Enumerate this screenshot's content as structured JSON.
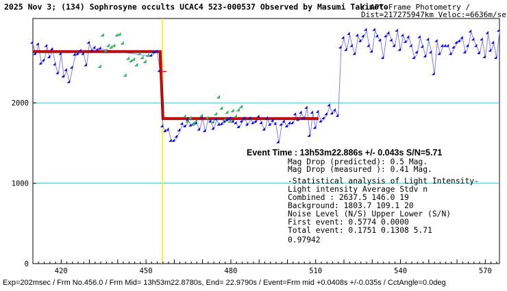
{
  "header": {
    "title_bold": "2025 Nov 3; (134) Sophrosyne occults UCAC4 523-000537 Observed by Masumi Takimoto",
    "title_rest": " / APT-Frame Photometry /",
    "subtitle": "Dist=217275947km Veloc:=6636m/sec"
  },
  "footer": {
    "text": "Exp=202msec / Frm No.456.0 / Frm Mid= 13h53m22.8780s, End= 22.9790s / Event=Frm mid +0.0408s +/-0.035s / CctAngle=0.0deg"
  },
  "results": {
    "event_time": "Event Time : 13h53m22.886s  +/- 0.043s  S/N=5.71",
    "mag_drop_predicted": "Mag Drop (predicted):  0.5   Mag.",
    "mag_drop_measured": "Mag Drop (measured ):  0.41  Mag.",
    "stat_header": "-Statistical analysis of Light Intensity-",
    "table_header": "Light intensity    Average   Stdv      n",
    "row_combined": "  Combined   :     2637.5    146.0    19",
    "row_background": "  Background:      1803.7    109.1    20",
    "noise_header": "Noise Level (N/S)   Upper     Lower    (S/N)",
    "row_first": "  First event:      0.5774   0.0000",
    "row_total": "  Total event:      0.1751   0.1308    5.71",
    "extra_value": "0.97942"
  },
  "chart_data": {
    "type": "line",
    "title": "2025 Nov 3; (134) Sophrosyne occults UCAC4 523-000537 Observed by Masumi Takimoto",
    "xlabel": "",
    "ylabel": "",
    "xlim": [
      410,
      575
    ],
    "ylim": [
      0,
      3050
    ],
    "x_ticks": [
      420,
      450,
      480,
      510,
      540,
      570
    ],
    "y_ticks": [
      0,
      1000,
      2000
    ],
    "grid": "horizontal lines at 1000 and 2000",
    "colors": {
      "primary": "#0000ee",
      "secondary": "#22aa55",
      "model": "#ff0000",
      "model_outline": "#800000",
      "grid": "#00dddd",
      "event_marker": "#ffee00"
    },
    "event_frame": 455.8,
    "model_curve": {
      "upper_level": 2637.5,
      "lower_level": 1803.7,
      "upper_range": [
        410,
        455
      ],
      "lower_range": [
        456,
        511
      ]
    },
    "series": [
      {
        "color": "#0000ee",
        "marker": "diamond",
        "points": [
          [
            410,
            2740
          ],
          [
            411,
            2600
          ],
          [
            412,
            2720
          ],
          [
            413,
            2480
          ],
          [
            414,
            2520
          ],
          [
            415,
            2700
          ],
          [
            416,
            2560
          ],
          [
            417,
            2660
          ],
          [
            418,
            2470
          ],
          [
            419,
            2360
          ],
          [
            420,
            2600
          ],
          [
            421,
            2320
          ],
          [
            422,
            2400
          ],
          [
            423,
            2250
          ],
          [
            424,
            2430
          ],
          [
            425,
            2590
          ],
          [
            426,
            2600
          ],
          [
            427,
            2640
          ],
          [
            428,
            2600
          ],
          [
            429,
            2460
          ],
          [
            430,
            2740
          ],
          [
            431,
            2640
          ],
          [
            432,
            2680
          ],
          [
            433,
            2650
          ],
          [
            434,
            2670
          ],
          [
            452,
            2580
          ],
          [
            453,
            2620
          ],
          [
            454,
            2630
          ],
          [
            455,
            2390
          ],
          [
            456,
            1700
          ],
          [
            457,
            1640
          ],
          [
            458,
            1660
          ],
          [
            459,
            1520
          ],
          [
            460,
            1520
          ],
          [
            461,
            1570
          ],
          [
            462,
            1650
          ],
          [
            463,
            1730
          ],
          [
            464,
            1700
          ],
          [
            465,
            1780
          ],
          [
            466,
            1710
          ],
          [
            467,
            1730
          ],
          [
            468,
            1740
          ],
          [
            469,
            1660
          ],
          [
            470,
            1810
          ],
          [
            471,
            1640
          ],
          [
            472,
            1800
          ],
          [
            473,
            1760
          ],
          [
            474,
            1670
          ],
          [
            475,
            1790
          ],
          [
            476,
            1720
          ],
          [
            477,
            1730
          ],
          [
            478,
            1760
          ],
          [
            479,
            1780
          ],
          [
            480,
            1800
          ],
          [
            481,
            1760
          ],
          [
            482,
            1740
          ],
          [
            483,
            1690
          ],
          [
            484,
            1760
          ],
          [
            485,
            1800
          ],
          [
            486,
            1720
          ],
          [
            487,
            1800
          ],
          [
            488,
            1740
          ],
          [
            489,
            1760
          ],
          [
            490,
            1820
          ],
          [
            491,
            1740
          ],
          [
            492,
            1660
          ],
          [
            493,
            1800
          ],
          [
            494,
            1720
          ],
          [
            495,
            1770
          ],
          [
            496,
            1730
          ],
          [
            497,
            1500
          ],
          [
            498,
            1720
          ],
          [
            499,
            1760
          ],
          [
            500,
            1700
          ],
          [
            501,
            1740
          ],
          [
            502,
            1740
          ],
          [
            503,
            1850
          ],
          [
            504,
            1780
          ],
          [
            505,
            1870
          ],
          [
            506,
            1800
          ],
          [
            507,
            1930
          ],
          [
            508,
            1580
          ],
          [
            509,
            1870
          ],
          [
            510,
            1680
          ],
          [
            511,
            1880
          ],
          [
            512,
            1760
          ],
          [
            513,
            1800
          ],
          [
            514,
            1850
          ],
          [
            515,
            1960
          ],
          [
            516,
            1860
          ],
          [
            517,
            1900
          ],
          [
            518,
            1830
          ],
          [
            519,
            2680
          ],
          [
            520,
            2800
          ],
          [
            521,
            2650
          ],
          [
            522,
            2850
          ],
          [
            523,
            2700
          ],
          [
            524,
            2600
          ],
          [
            525,
            2830
          ],
          [
            526,
            2760
          ],
          [
            527,
            2820
          ],
          [
            528,
            2900
          ],
          [
            529,
            2700
          ],
          [
            530,
            2630
          ],
          [
            531,
            2900
          ],
          [
            532,
            2820
          ],
          [
            533,
            2770
          ],
          [
            534,
            2550
          ],
          [
            535,
            2820
          ],
          [
            536,
            2860
          ],
          [
            537,
            2770
          ],
          [
            538,
            2700
          ],
          [
            539,
            2890
          ],
          [
            540,
            2650
          ],
          [
            541,
            2830
          ],
          [
            542,
            2750
          ],
          [
            543,
            2810
          ],
          [
            544,
            2700
          ],
          [
            545,
            2550
          ],
          [
            546,
            2620
          ],
          [
            547,
            2810
          ],
          [
            548,
            2690
          ],
          [
            549,
            2570
          ],
          [
            550,
            2780
          ],
          [
            551,
            2620
          ],
          [
            552,
            2350
          ],
          [
            553,
            2760
          ],
          [
            554,
            2600
          ],
          [
            555,
            2700
          ],
          [
            556,
            2700
          ],
          [
            557,
            2700
          ],
          [
            558,
            2600
          ],
          [
            559,
            2680
          ],
          [
            560,
            2740
          ],
          [
            561,
            2760
          ],
          [
            562,
            2800
          ],
          [
            563,
            2620
          ],
          [
            564,
            2700
          ],
          [
            565,
            2880
          ],
          [
            566,
            2780
          ],
          [
            567,
            2700
          ],
          [
            568,
            2610
          ],
          [
            569,
            2780
          ],
          [
            570,
            2560
          ],
          [
            571,
            2860
          ],
          [
            572,
            2640
          ],
          [
            573,
            2740
          ],
          [
            574,
            2550
          ],
          [
            575,
            2890
          ]
        ]
      },
      {
        "color": "#22aa55",
        "marker": "diamond-open",
        "points": [
          [
            434,
            2440
          ],
          [
            435,
            2830
          ],
          [
            436,
            2640
          ],
          [
            437,
            2700
          ],
          [
            438,
            2680
          ],
          [
            439,
            2700
          ],
          [
            440,
            2830
          ],
          [
            441,
            2840
          ],
          [
            442,
            2730
          ],
          [
            443,
            2330
          ],
          [
            444,
            2540
          ],
          [
            445,
            2510
          ],
          [
            446,
            2530
          ],
          [
            447,
            2460
          ],
          [
            448,
            2600
          ],
          [
            449,
            2550
          ],
          [
            450,
            2500
          ],
          [
            451,
            2580
          ],
          [
            464,
            1820
          ],
          [
            465,
            1760
          ],
          [
            466,
            1800
          ],
          [
            467,
            1720
          ],
          [
            468,
            1760
          ],
          [
            470,
            1830
          ],
          [
            472,
            1800
          ],
          [
            474,
            1750
          ],
          [
            475,
            1850
          ],
          [
            476,
            2060
          ],
          [
            477,
            1920
          ],
          [
            478,
            1780
          ],
          [
            479,
            1870
          ],
          [
            480,
            1760
          ],
          [
            481,
            1890
          ],
          [
            482,
            1820
          ],
          [
            483,
            1900
          ],
          [
            484,
            1940
          ]
        ]
      }
    ]
  }
}
